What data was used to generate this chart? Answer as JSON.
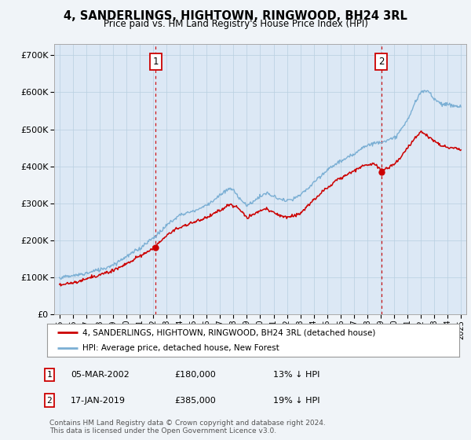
{
  "title": "4, SANDERLINGS, HIGHTOWN, RINGWOOD, BH24 3RL",
  "subtitle": "Price paid vs. HM Land Registry's House Price Index (HPI)",
  "legend_line1": "4, SANDERLINGS, HIGHTOWN, RINGWOOD, BH24 3RL (detached house)",
  "legend_line2": "HPI: Average price, detached house, New Forest",
  "annotation1_date": "05-MAR-2002",
  "annotation1_price": "£180,000",
  "annotation1_pct": "13% ↓ HPI",
  "annotation2_date": "17-JAN-2019",
  "annotation2_price": "£385,000",
  "annotation2_pct": "19% ↓ HPI",
  "footer": "Contains HM Land Registry data © Crown copyright and database right 2024.\nThis data is licensed under the Open Government Licence v3.0.",
  "sale1_year": 2002.17,
  "sale1_value": 180000,
  "sale2_year": 2019.04,
  "sale2_value": 385000,
  "hpi_color": "#7bafd4",
  "price_color": "#cc0000",
  "vline_color": "#cc0000",
  "background_color": "#f0f4f8",
  "plot_background": "#dce8f5",
  "ylim": [
    0,
    730000
  ],
  "xlim_start": 1994.6,
  "xlim_end": 2025.4,
  "yticks": [
    0,
    100000,
    200000,
    300000,
    400000,
    500000,
    600000,
    700000
  ],
  "xticks": [
    1995,
    1996,
    1997,
    1998,
    1999,
    2000,
    2001,
    2002,
    2003,
    2004,
    2005,
    2006,
    2007,
    2008,
    2009,
    2010,
    2011,
    2012,
    2013,
    2014,
    2015,
    2016,
    2017,
    2018,
    2019,
    2020,
    2021,
    2022,
    2023,
    2024,
    2025
  ]
}
